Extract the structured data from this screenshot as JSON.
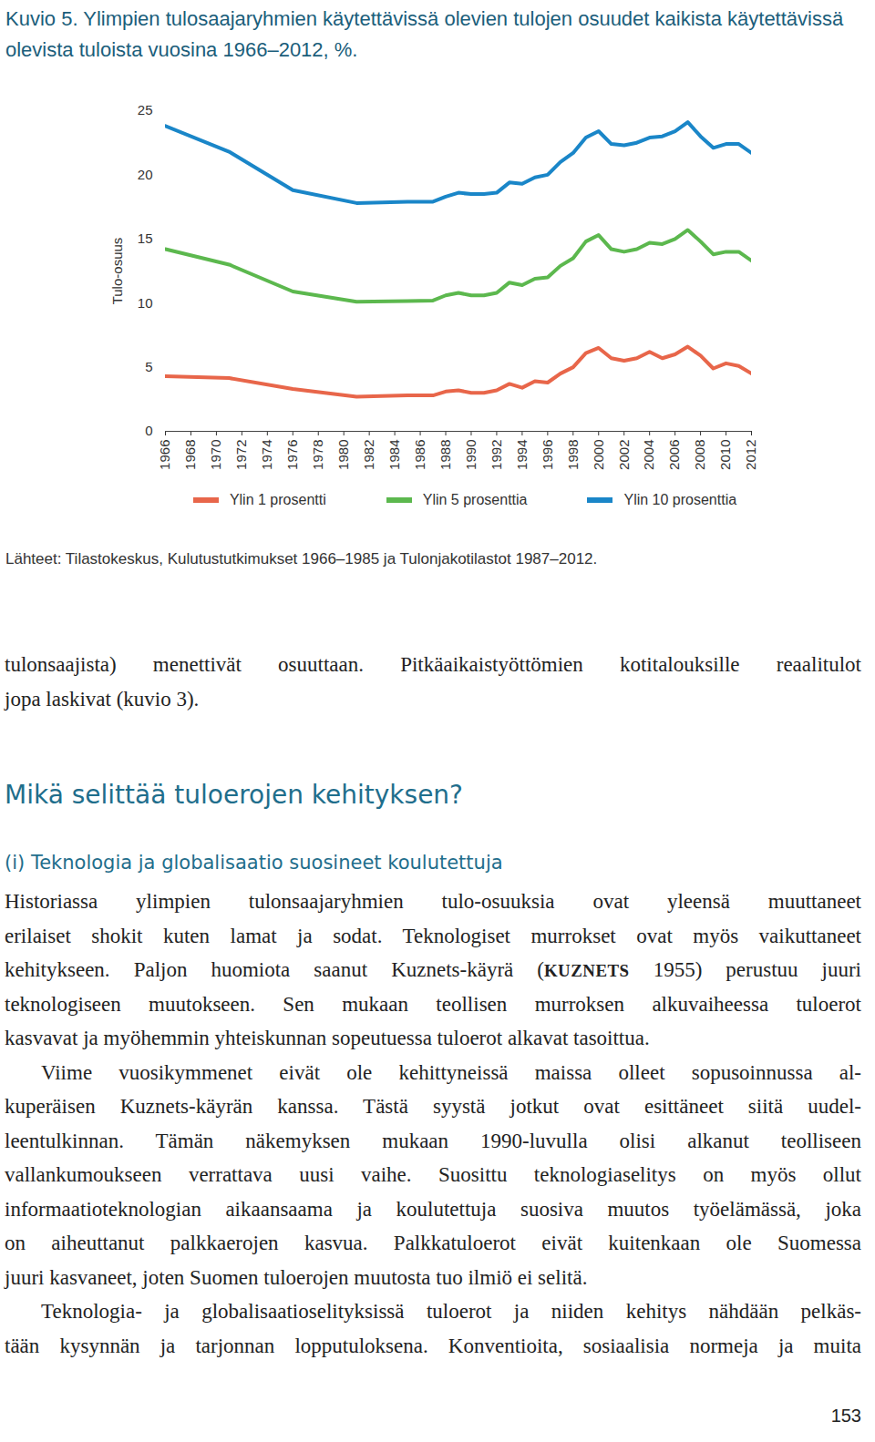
{
  "chart_data": {
    "type": "line",
    "title": "Kuvio 5. Ylimpien tulosaajaryhmien käytettävissä olevien tulojen osuudet kaikista käytettävissä olevista tuloista vuosina 1966–2012, %.",
    "source": "Lähteet: Tilastokeskus, Kulutustutkimukset 1966–1985 ja Tulonjakotilastot 1987–2012.",
    "y_label": "Tulo-osuus",
    "x": [
      1966,
      1971,
      1976,
      1981,
      1985,
      1987,
      1988,
      1989,
      1990,
      1991,
      1992,
      1993,
      1994,
      1995,
      1996,
      1997,
      1998,
      1999,
      2000,
      2001,
      2002,
      2003,
      2004,
      2005,
      2006,
      2007,
      2008,
      2009,
      2010,
      2011,
      2012
    ],
    "series": [
      {
        "name": "Ylin 1 prosentti",
        "color": "#e8664a",
        "values": [
          4.3,
          4.15,
          3.3,
          2.7,
          2.8,
          2.8,
          3.1,
          3.2,
          3.0,
          3.0,
          3.2,
          3.7,
          3.4,
          3.9,
          3.8,
          4.5,
          5.0,
          6.1,
          6.5,
          5.7,
          5.5,
          5.7,
          6.2,
          5.7,
          6.0,
          6.6,
          5.9,
          4.9,
          5.3,
          5.1,
          4.5
        ]
      },
      {
        "name": "Ylin 5 prosenttia",
        "color": "#5cb84e",
        "values": [
          14.2,
          13.0,
          10.9,
          10.1,
          10.15,
          10.2,
          10.6,
          10.8,
          10.6,
          10.6,
          10.8,
          11.6,
          11.4,
          11.9,
          12.0,
          12.9,
          13.5,
          14.8,
          15.3,
          14.2,
          14.0,
          14.2,
          14.7,
          14.6,
          15.0,
          15.7,
          14.8,
          13.8,
          14.0,
          14.0,
          13.3
        ]
      },
      {
        "name": "Ylin 10 prosenttia",
        "color": "#1a86c8",
        "values": [
          23.8,
          21.8,
          18.8,
          17.8,
          17.9,
          17.9,
          18.3,
          18.6,
          18.5,
          18.5,
          18.6,
          19.4,
          19.3,
          19.8,
          20.0,
          21.0,
          21.7,
          22.9,
          23.4,
          22.4,
          22.3,
          22.5,
          22.9,
          23.0,
          23.4,
          24.1,
          23.0,
          22.1,
          22.4,
          22.4,
          21.7
        ]
      }
    ],
    "xlim": [
      1966,
      2012
    ],
    "xticks": [
      1966,
      1968,
      1970,
      1972,
      1974,
      1976,
      1978,
      1980,
      1982,
      1984,
      1986,
      1988,
      1990,
      1992,
      1994,
      1996,
      1998,
      2000,
      2002,
      2004,
      2006,
      2008,
      2010,
      2012
    ],
    "ylim": [
      0,
      25
    ],
    "yticks": [
      0,
      5,
      10,
      15,
      20,
      25
    ],
    "grid": false,
    "legend": "bottom"
  },
  "page": {
    "continuation": [
      "tulonsaajista) menettivät osuuttaan. Pitkäaikaistyöttömien kotitalouksille reaalitulot",
      "jopa laskivat (kuvio 3)."
    ],
    "heading": "Mikä selittää tuloerojen kehityksen?",
    "subheading": "(i) Teknologia ja globalisaatio suosineet koulutettuja",
    "paragraphs": [
      [
        "Historiassa ylimpien tulonsaajaryhmien tulo-osuuksia ovat yleensä muuttaneet",
        "erilaiset shokit kuten lamat ja sodat. Teknologiset murrokset ovat myös vaikuttaneet",
        [
          {
            "text": "kehitykseen. Paljon huomiota saanut Kuznets-käyrä ("
          },
          {
            "text": "KUZNETS",
            "smallcaps": true
          },
          {
            "text": " 1955) perustuu juuri"
          }
        ],
        "teknologiseen muutokseen. Sen mukaan teollisen murroksen alkuvaiheessa tuloerot",
        "kasvavat ja myöhemmin yhteiskunnan sopeutuessa tuloerot alkavat tasoittua."
      ],
      [
        "Viime vuosikymmenet eivät ole kehittyneissä maissa olleet sopusoinnussa al-",
        "kuperäisen Kuznets-käyrän kanssa. Tästä syystä jotkut ovat esittäneet siitä uudel-",
        "leentulkinnan. Tämän näkemyksen mukaan 1990-luvulla olisi alkanut teolliseen",
        "vallankumoukseen verrattava uusi vaihe. Suosittu teknologiaselitys on myös ollut",
        "informaatioteknologian aikaansaama ja koulutettuja suosiva muutos työelämässä, joka",
        "on aiheuttanut palkkaerojen kasvua. Palkkatuloerot eivät kuitenkaan ole Suomessa",
        "juuri kasvaneet, joten Suomen tuloerojen muutosta tuo ilmiö ei selitä."
      ],
      [
        "Teknologia- ja globalisaatioselityksissä tuloerot ja niiden kehitys nähdään pelkäs-",
        "tään kysynnän ja tarjonnan lopputuloksena. Konventioita, sosiaalisia normeja ja muita"
      ]
    ],
    "page_number": "153"
  }
}
